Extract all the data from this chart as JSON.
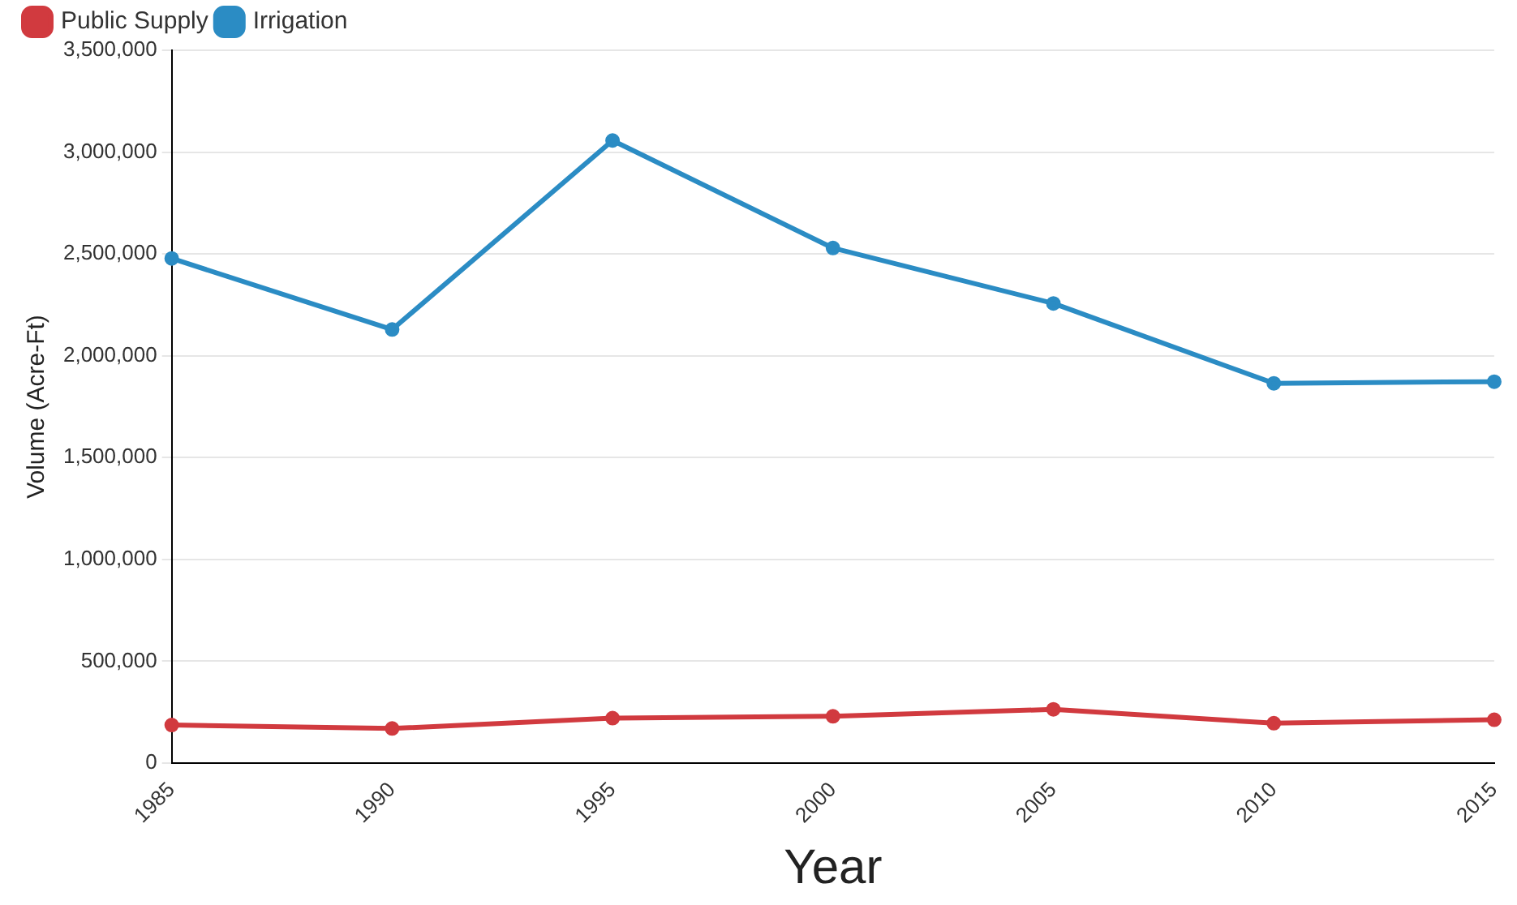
{
  "chart_data": {
    "type": "line",
    "xlabel": "Year",
    "ylabel": "Volume (Acre-Ft)",
    "categories": [
      "1985",
      "1990",
      "1995",
      "2000",
      "2005",
      "2010",
      "2015"
    ],
    "series": [
      {
        "name": "Public Supply",
        "color": "#d13a3f",
        "values": [
          187000,
          170000,
          221000,
          230000,
          264000,
          196000,
          213000
        ]
      },
      {
        "name": "Irrigation",
        "color": "#2b8cc4",
        "values": [
          2478000,
          2129000,
          3057000,
          2529000,
          2257000,
          1865000,
          1873000
        ]
      }
    ],
    "ylim": [
      0,
      3500000
    ],
    "yticks": [
      0,
      {
        "value": 500000,
        "label": "500,000"
      },
      {
        "value": 1000000,
        "label": "1,000,000"
      },
      {
        "value": 1500000,
        "label": "1,500,000"
      },
      {
        "value": 2000000,
        "label": "2,000,000"
      },
      {
        "value": 2500000,
        "label": "2,500,000"
      },
      {
        "value": 3000000,
        "label": "3,000,000"
      },
      {
        "value": 3500000,
        "label": "3,500,000"
      }
    ],
    "grid": "y",
    "legend": "top left",
    "marker": "circle",
    "line_style": "solid"
  }
}
